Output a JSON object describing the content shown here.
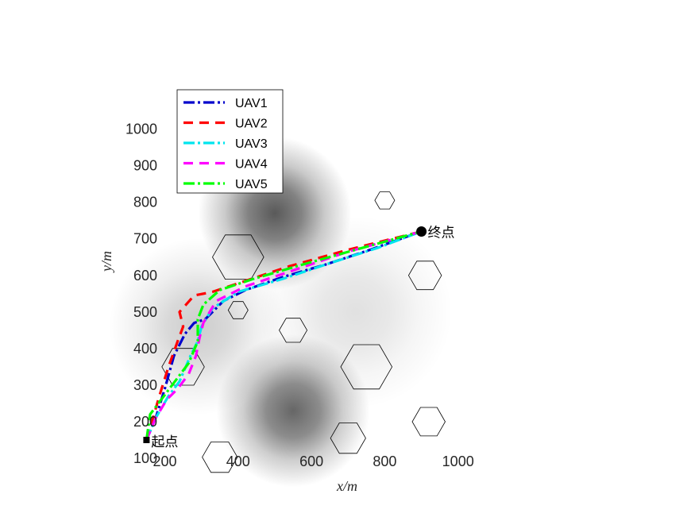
{
  "chart_data": {
    "type": "line",
    "xlabel": "x/m",
    "ylabel": "y/m",
    "xlim": [
      0,
      1100
    ],
    "ylim": [
      0,
      1050
    ],
    "xticks": [
      200,
      400,
      600,
      800,
      1000
    ],
    "yticks": [
      100,
      200,
      300,
      400,
      500,
      600,
      700,
      800,
      900,
      1000
    ],
    "grid": false,
    "legend_position": "top-left",
    "background_terrain": [
      {
        "x": 500,
        "y": 770,
        "sigma": 95,
        "strength": 0.65
      },
      {
        "x": 550,
        "y": 230,
        "sigma": 95,
        "strength": 0.6
      },
      {
        "x": 290,
        "y": 460,
        "sigma": 110,
        "strength": 0.2
      },
      {
        "x": 720,
        "y": 500,
        "sigma": 120,
        "strength": 0.12
      }
    ],
    "obstacles": [
      {
        "x": 400,
        "y": 650,
        "r": 70
      },
      {
        "x": 800,
        "y": 805,
        "r": 27
      },
      {
        "x": 910,
        "y": 600,
        "r": 45
      },
      {
        "x": 400,
        "y": 505,
        "r": 27
      },
      {
        "x": 550,
        "y": 450,
        "r": 38
      },
      {
        "x": 250,
        "y": 350,
        "r": 58
      },
      {
        "x": 750,
        "y": 350,
        "r": 70
      },
      {
        "x": 920,
        "y": 200,
        "r": 45
      },
      {
        "x": 700,
        "y": 155,
        "r": 48
      },
      {
        "x": 350,
        "y": 103,
        "r": 48
      }
    ],
    "start": {
      "x": 150,
      "y": 150,
      "label": "起点"
    },
    "goal": {
      "x": 900,
      "y": 720,
      "label": "终点"
    },
    "series": [
      {
        "name": "UAV1",
        "color": "#0000cc",
        "dash": "dashdot",
        "x": [
          150,
          175,
          200,
          225,
          255,
          280,
          310,
          360,
          420,
          520,
          640,
          760,
          900
        ],
        "y": [
          150,
          210,
          290,
          380,
          440,
          470,
          480,
          530,
          560,
          595,
          630,
          670,
          720
        ]
      },
      {
        "name": "UAV2",
        "color": "#ff0000",
        "dash": "dashed",
        "x": [
          150,
          165,
          185,
          210,
          235,
          250,
          240,
          280,
          330,
          420,
          540,
          700,
          900
        ],
        "y": [
          150,
          200,
          270,
          350,
          420,
          460,
          500,
          545,
          555,
          585,
          625,
          670,
          720
        ]
      },
      {
        "name": "UAV3",
        "color": "#00e5ee",
        "dash": "dashdot",
        "x": [
          150,
          175,
          210,
          240,
          270,
          290,
          300,
          330,
          400,
          520,
          640,
          780,
          900
        ],
        "y": [
          150,
          210,
          270,
          310,
          380,
          420,
          460,
          510,
          555,
          590,
          630,
          675,
          720
        ]
      },
      {
        "name": "UAV4",
        "color": "#ff00ff",
        "dash": "dashed",
        "x": [
          150,
          175,
          205,
          235,
          265,
          285,
          295,
          305,
          340,
          420,
          540,
          700,
          900
        ],
        "y": [
          150,
          210,
          260,
          290,
          330,
          380,
          430,
          470,
          530,
          570,
          610,
          665,
          720
        ]
      },
      {
        "name": "UAV5",
        "color": "#00ff00",
        "dash": "dashdot",
        "x": [
          150,
          160,
          190,
          220,
          265,
          290,
          290,
          305,
          350,
          440,
          560,
          720,
          900
        ],
        "y": [
          150,
          220,
          260,
          300,
          360,
          420,
          480,
          520,
          560,
          590,
          625,
          670,
          720
        ]
      }
    ]
  }
}
